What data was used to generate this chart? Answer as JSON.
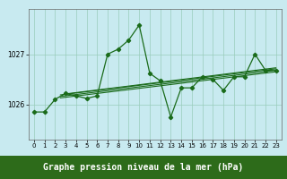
{
  "title": "Graphe pression niveau de la mer (hPa)",
  "bg_color": "#c8eaf0",
  "plot_bg": "#c8eaf0",
  "grid_color": "#99ccbb",
  "line_color": "#1a6b1a",
  "title_bg": "#2d6b1a",
  "title_fg": "#ffffff",
  "x_ticks": [
    0,
    1,
    2,
    3,
    4,
    5,
    6,
    7,
    8,
    9,
    10,
    11,
    12,
    13,
    14,
    15,
    16,
    17,
    18,
    19,
    20,
    21,
    22,
    23
  ],
  "y_ticks": [
    1026,
    1027
  ],
  "ylim": [
    1025.3,
    1027.9
  ],
  "xlim": [
    -0.5,
    23.5
  ],
  "main_x": [
    0,
    1,
    2,
    3,
    4,
    5,
    6,
    7,
    8,
    9,
    10,
    11,
    12,
    13,
    14,
    15,
    16,
    17,
    18,
    19,
    20,
    21,
    22,
    23
  ],
  "main_y": [
    1025.85,
    1025.85,
    1026.1,
    1026.22,
    1026.17,
    1026.12,
    1026.17,
    1027.0,
    1027.1,
    1027.28,
    1027.58,
    1026.62,
    1026.47,
    1025.75,
    1026.33,
    1026.33,
    1026.55,
    1026.5,
    1026.28,
    1026.55,
    1026.55,
    1027.0,
    1026.68,
    1026.68
  ],
  "reg_lines": [
    {
      "x0": 2.5,
      "y0": 1026.13,
      "x1": 23,
      "y1": 1026.65
    },
    {
      "x0": 2.5,
      "y0": 1026.16,
      "x1": 23,
      "y1": 1026.68
    },
    {
      "x0": 2.5,
      "y0": 1026.19,
      "x1": 23,
      "y1": 1026.71
    },
    {
      "x0": 3.0,
      "y0": 1026.21,
      "x1": 23,
      "y1": 1026.73
    }
  ],
  "tick_fontsize": 5.0,
  "title_fontsize": 7.0,
  "figwidth": 3.2,
  "figheight": 2.0,
  "dpi": 100
}
